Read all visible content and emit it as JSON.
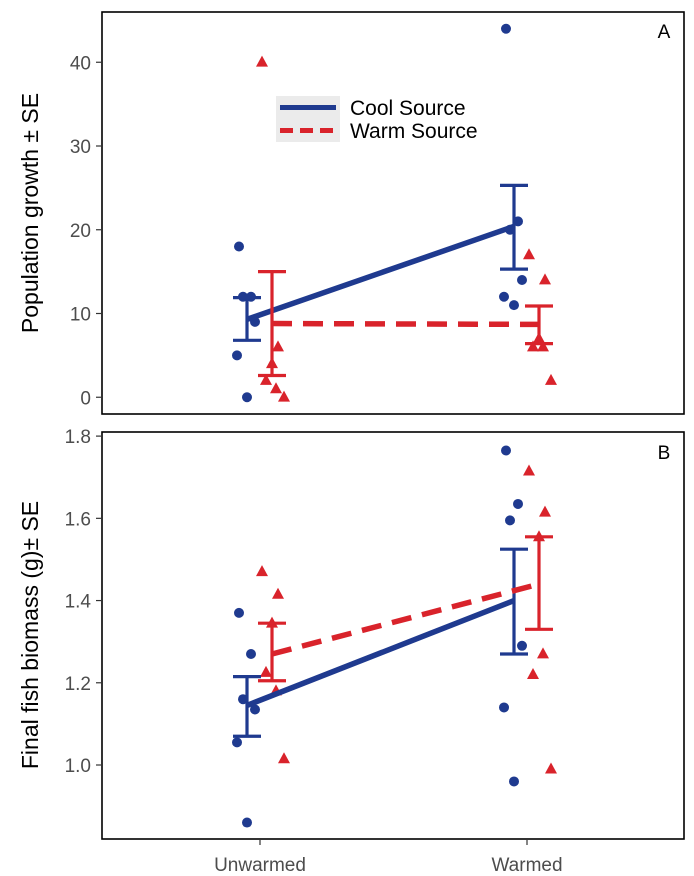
{
  "colors": {
    "cool": "#1f3a8f",
    "warm": "#d9232b",
    "tick": "#4d4d4d",
    "legend_bg": "#ebebeb"
  },
  "chart_data": [
    {
      "type": "scatter",
      "panel_tag": "A",
      "ylabel": "Population growth ± SE",
      "xlabel": "",
      "categories": [
        "Unwarmed",
        "Warmed"
      ],
      "ylim": [
        -2,
        46
      ],
      "yticks": [
        0,
        10,
        20,
        30,
        40
      ],
      "grid": false,
      "legend": {
        "position": "top-center",
        "entries": [
          {
            "name": "Cool Source",
            "series": "cool",
            "linestyle": "solid"
          },
          {
            "name": "Warm Source",
            "series": "warm",
            "linestyle": "dashed"
          }
        ]
      },
      "series": [
        {
          "name": "Cool Source",
          "key": "cool",
          "marker": "circle",
          "linestyle": "solid",
          "means": [
            9.3,
            20.4
          ],
          "error_low": [
            6.8,
            15.3
          ],
          "error_high": [
            11.9,
            25.3
          ],
          "points": [
            {
              "x": "Unwarmed",
              "y": 18.0
            },
            {
              "x": "Unwarmed",
              "y": 12.0
            },
            {
              "x": "Unwarmed",
              "y": 12.0
            },
            {
              "x": "Unwarmed",
              "y": 9.0
            },
            {
              "x": "Unwarmed",
              "y": 5.0
            },
            {
              "x": "Unwarmed",
              "y": 0.0
            },
            {
              "x": "Warmed",
              "y": 44.0
            },
            {
              "x": "Warmed",
              "y": 21.0
            },
            {
              "x": "Warmed",
              "y": 20.0
            },
            {
              "x": "Warmed",
              "y": 14.0
            },
            {
              "x": "Warmed",
              "y": 12.0
            },
            {
              "x": "Warmed",
              "y": 11.0
            }
          ]
        },
        {
          "name": "Warm Source",
          "key": "warm",
          "marker": "triangle",
          "linestyle": "dashed",
          "means": [
            8.8,
            8.7
          ],
          "error_low": [
            2.6,
            6.4
          ],
          "error_high": [
            15.0,
            10.9
          ],
          "points": [
            {
              "x": "Unwarmed",
              "y": 40.0
            },
            {
              "x": "Unwarmed",
              "y": 6.0
            },
            {
              "x": "Unwarmed",
              "y": 4.0
            },
            {
              "x": "Unwarmed",
              "y": 2.0
            },
            {
              "x": "Unwarmed",
              "y": 1.0
            },
            {
              "x": "Unwarmed",
              "y": 0.0
            },
            {
              "x": "Warmed",
              "y": 17.0
            },
            {
              "x": "Warmed",
              "y": 14.0
            },
            {
              "x": "Warmed",
              "y": 7.0
            },
            {
              "x": "Warmed",
              "y": 6.0
            },
            {
              "x": "Warmed",
              "y": 6.0
            },
            {
              "x": "Warmed",
              "y": 2.0
            }
          ]
        }
      ]
    },
    {
      "type": "scatter",
      "panel_tag": "B",
      "ylabel": "Final fish biomass (g)± SE",
      "xlabel": "",
      "categories": [
        "Unwarmed",
        "Warmed"
      ],
      "ylim": [
        0.82,
        1.81
      ],
      "yticks": [
        1.0,
        1.2,
        1.4,
        1.6,
        1.8
      ],
      "ytick_labels": [
        "1.0",
        "1.2",
        "1.4",
        "1.6",
        "1.8"
      ],
      "grid": false,
      "series": [
        {
          "name": "Cool Source",
          "key": "cool",
          "marker": "circle",
          "linestyle": "solid",
          "means": [
            1.145,
            1.4
          ],
          "error_low": [
            1.07,
            1.27
          ],
          "error_high": [
            1.215,
            1.525
          ],
          "points": [
            {
              "x": "Unwarmed",
              "y": 1.37
            },
            {
              "x": "Unwarmed",
              "y": 1.27
            },
            {
              "x": "Unwarmed",
              "y": 1.16
            },
            {
              "x": "Unwarmed",
              "y": 1.135
            },
            {
              "x": "Unwarmed",
              "y": 1.055
            },
            {
              "x": "Unwarmed",
              "y": 0.86
            },
            {
              "x": "Warmed",
              "y": 1.765
            },
            {
              "x": "Warmed",
              "y": 1.635
            },
            {
              "x": "Warmed",
              "y": 1.595
            },
            {
              "x": "Warmed",
              "y": 1.29
            },
            {
              "x": "Warmed",
              "y": 1.14
            },
            {
              "x": "Warmed",
              "y": 0.96
            }
          ]
        },
        {
          "name": "Warm Source",
          "key": "warm",
          "marker": "triangle",
          "linestyle": "dashed",
          "means": [
            1.27,
            1.44
          ],
          "error_low": [
            1.205,
            1.33
          ],
          "error_high": [
            1.345,
            1.555
          ],
          "points": [
            {
              "x": "Unwarmed",
              "y": 1.47
            },
            {
              "x": "Unwarmed",
              "y": 1.415
            },
            {
              "x": "Unwarmed",
              "y": 1.345
            },
            {
              "x": "Unwarmed",
              "y": 1.225
            },
            {
              "x": "Unwarmed",
              "y": 1.18
            },
            {
              "x": "Unwarmed",
              "y": 1.015
            },
            {
              "x": "Warmed",
              "y": 1.715
            },
            {
              "x": "Warmed",
              "y": 1.615
            },
            {
              "x": "Warmed",
              "y": 1.555
            },
            {
              "x": "Warmed",
              "y": 1.22
            },
            {
              "x": "Warmed",
              "y": 1.27
            },
            {
              "x": "Warmed",
              "y": 0.99
            }
          ]
        }
      ]
    }
  ]
}
